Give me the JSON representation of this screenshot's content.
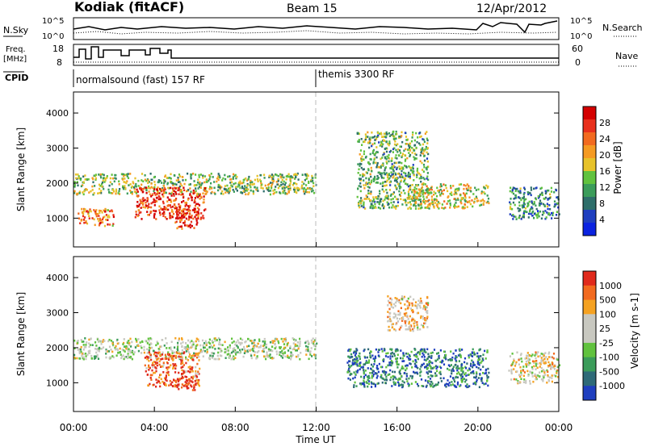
{
  "header": {
    "station": "Kodiak (fitACF)",
    "beam": "Beam 15",
    "date": "12/Apr/2012"
  },
  "summary_panels": {
    "nsky_label": "N.Sky",
    "nsearch_label": "N.Search",
    "noise_ticks": [
      "10^5",
      "10^0"
    ],
    "freq_label_1": "Freq.",
    "freq_label_2": "[MHz]",
    "freq_ticks": [
      "18",
      "8"
    ],
    "nave_label": "Nave",
    "nave_ticks": [
      "60",
      "0"
    ],
    "cpid_label": "CPID",
    "cpid_segments": [
      {
        "label": "normalsound (fast) 157 RF",
        "start_hour": 0
      },
      {
        "label": "themis 3300 RF",
        "start_hour": 12
      }
    ]
  },
  "chart_data": [
    {
      "type": "heatmap",
      "name": "power",
      "ylabel": "Slant Range [km]",
      "xlabel": "Time UT",
      "x_ticks": [
        "00:00",
        "04:00",
        "08:00",
        "12:00",
        "16:00",
        "20:00",
        "00:00"
      ],
      "xlim": [
        0,
        24
      ],
      "ylim": [
        180,
        4600
      ],
      "y_ticks": [
        1000,
        2000,
        3000,
        4000
      ],
      "colorbar": {
        "label": "Power [dB]",
        "ticks": [
          "28",
          "24",
          "20",
          "16",
          "12",
          "8",
          "4"
        ],
        "colors": [
          "#0b23e0",
          "#1f3fbf",
          "#2e6e6a",
          "#3b9c5a",
          "#61c23e",
          "#e7c22a",
          "#f59a22",
          "#f26a1f",
          "#e8301c",
          "#d40000"
        ]
      },
      "regions": [
        {
          "x": [
            0.0,
            12.0
          ],
          "y": [
            1700,
            2300
          ],
          "level": 0.45
        },
        {
          "x": [
            0.2,
            2.0
          ],
          "y": [
            800,
            1300
          ],
          "level": 0.7
        },
        {
          "x": [
            3.0,
            6.5
          ],
          "y": [
            1000,
            1900
          ],
          "level": 0.85
        },
        {
          "x": [
            5.0,
            6.2
          ],
          "y": [
            700,
            1300
          ],
          "level": 0.9
        },
        {
          "x": [
            14.0,
            17.5
          ],
          "y": [
            1300,
            3500
          ],
          "level": 0.4
        },
        {
          "x": [
            16.5,
            20.5
          ],
          "y": [
            1300,
            2000
          ],
          "level": 0.55
        },
        {
          "x": [
            21.5,
            24.0
          ],
          "y": [
            1000,
            1900
          ],
          "level": 0.3
        }
      ]
    },
    {
      "type": "heatmap",
      "name": "velocity",
      "ylabel": "Slant Range [km]",
      "xlabel": "Time UT",
      "x_ticks": [
        "00:00",
        "04:00",
        "08:00",
        "12:00",
        "16:00",
        "20:00",
        "00:00"
      ],
      "xlim": [
        0,
        24
      ],
      "ylim": [
        180,
        4600
      ],
      "y_ticks": [
        1000,
        2000,
        3000,
        4000
      ],
      "colorbar": {
        "label": "Velocity [m s-1]",
        "ticks": [
          "1000",
          "500",
          "100",
          "25",
          "-25",
          "-100",
          "-500",
          "-1000"
        ],
        "colors": [
          "#1f3fbf",
          "#2e6a78",
          "#3b9c5a",
          "#61c23e",
          "#c8c8c0",
          "#c8c8c0",
          "#f5a222",
          "#f26a1f",
          "#e02a1c"
        ]
      },
      "regions": [
        {
          "x": [
            0.0,
            12.0
          ],
          "y": [
            1700,
            2300
          ],
          "level": 0.5
        },
        {
          "x": [
            3.5,
            6.2
          ],
          "y": [
            900,
            1900
          ],
          "level": 0.85
        },
        {
          "x": [
            5.0,
            6.0
          ],
          "y": [
            800,
            1200
          ],
          "level": 0.95
        },
        {
          "x": [
            13.5,
            20.5
          ],
          "y": [
            900,
            2000
          ],
          "level": 0.2
        },
        {
          "x": [
            15.5,
            17.5
          ],
          "y": [
            2500,
            3500
          ],
          "level": 0.65
        },
        {
          "x": [
            21.5,
            24.0
          ],
          "y": [
            1000,
            1900
          ],
          "level": 0.6
        }
      ]
    }
  ]
}
